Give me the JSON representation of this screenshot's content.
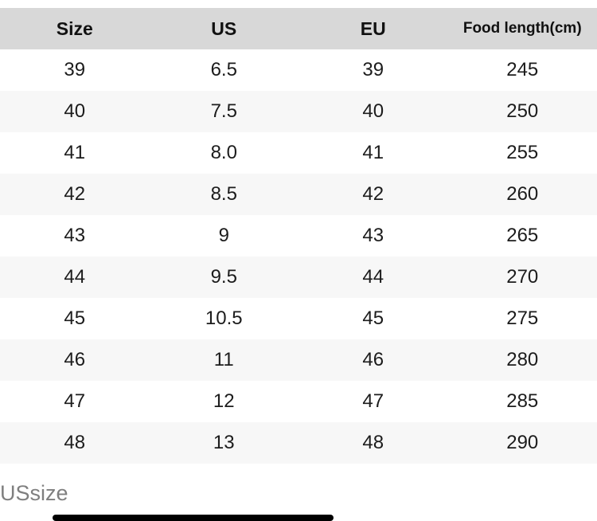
{
  "size_chart": {
    "columns": [
      {
        "id": "size",
        "label": "Size"
      },
      {
        "id": "us",
        "label": "US"
      },
      {
        "id": "eu",
        "label": "EU"
      },
      {
        "id": "foot_length",
        "label": "Food length(cm)"
      }
    ],
    "rows": [
      [
        "39",
        "6.5",
        "39",
        "245"
      ],
      [
        "40",
        "7.5",
        "40",
        "250"
      ],
      [
        "41",
        "8.0",
        "41",
        "255"
      ],
      [
        "42",
        "8.5",
        "42",
        "260"
      ],
      [
        "43",
        "9",
        "43",
        "265"
      ],
      [
        "44",
        "9.5",
        "44",
        "270"
      ],
      [
        "45",
        "10.5",
        "45",
        "275"
      ],
      [
        "46",
        "11",
        "46",
        "280"
      ],
      [
        "47",
        "12",
        "47",
        "285"
      ],
      [
        "48",
        "13",
        "48",
        "290"
      ]
    ]
  },
  "footer": {
    "note": "USsize"
  },
  "colors": {
    "page_bg": "#ffffff",
    "header_bg": "#d8d8d8",
    "header_text": "#111111",
    "body_text": "#1c1c1c",
    "row_alt_bg": "#f7f7f7",
    "footer_text": "#7f7f7f",
    "scrollbar": "#000000"
  }
}
